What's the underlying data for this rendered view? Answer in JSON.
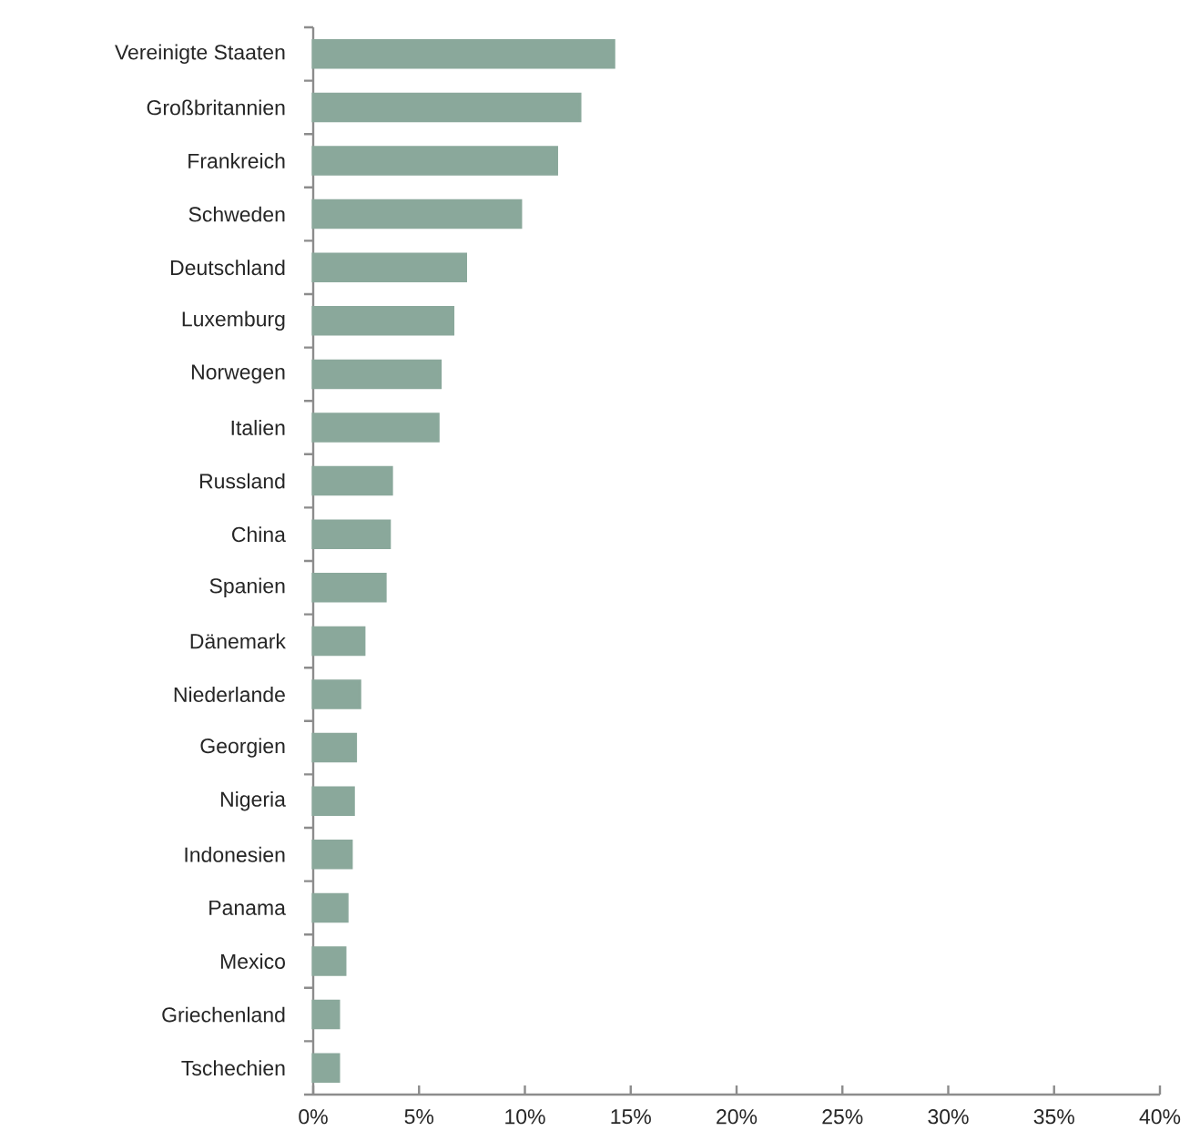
{
  "chart_data": {
    "type": "bar",
    "orientation": "horizontal",
    "categories": [
      "Vereinigte Staaten",
      "Großbritannien",
      "Frankreich",
      "Schweden",
      "Deutschland",
      "Luxemburg",
      "Norwegen",
      "Italien",
      "Russland",
      "China",
      "Spanien",
      "Dänemark",
      "Niederlande",
      "Georgien",
      "Nigeria",
      "Indonesien",
      "Panama",
      "Mexico",
      "Griechenland",
      "Tschechien"
    ],
    "values": [
      14.2,
      12.6,
      11.5,
      9.8,
      7.2,
      6.6,
      6.0,
      5.9,
      3.7,
      3.6,
      3.4,
      2.4,
      2.2,
      2.0,
      1.9,
      1.8,
      1.6,
      1.5,
      1.2,
      1.2
    ],
    "color": "#8aa89b",
    "xlim": [
      0,
      40
    ],
    "xticks": [
      {
        "value": 0,
        "label": "0%"
      },
      {
        "value": 5,
        "label": "5%"
      },
      {
        "value": 10,
        "label": "10%"
      },
      {
        "value": 15,
        "label": "15%"
      },
      {
        "value": 20,
        "label": "20%"
      },
      {
        "value": 25,
        "label": "25%"
      },
      {
        "value": 30,
        "label": "30%"
      },
      {
        "value": 35,
        "label": "35%"
      },
      {
        "value": 40,
        "label": "40%"
      }
    ],
    "grid": false
  }
}
